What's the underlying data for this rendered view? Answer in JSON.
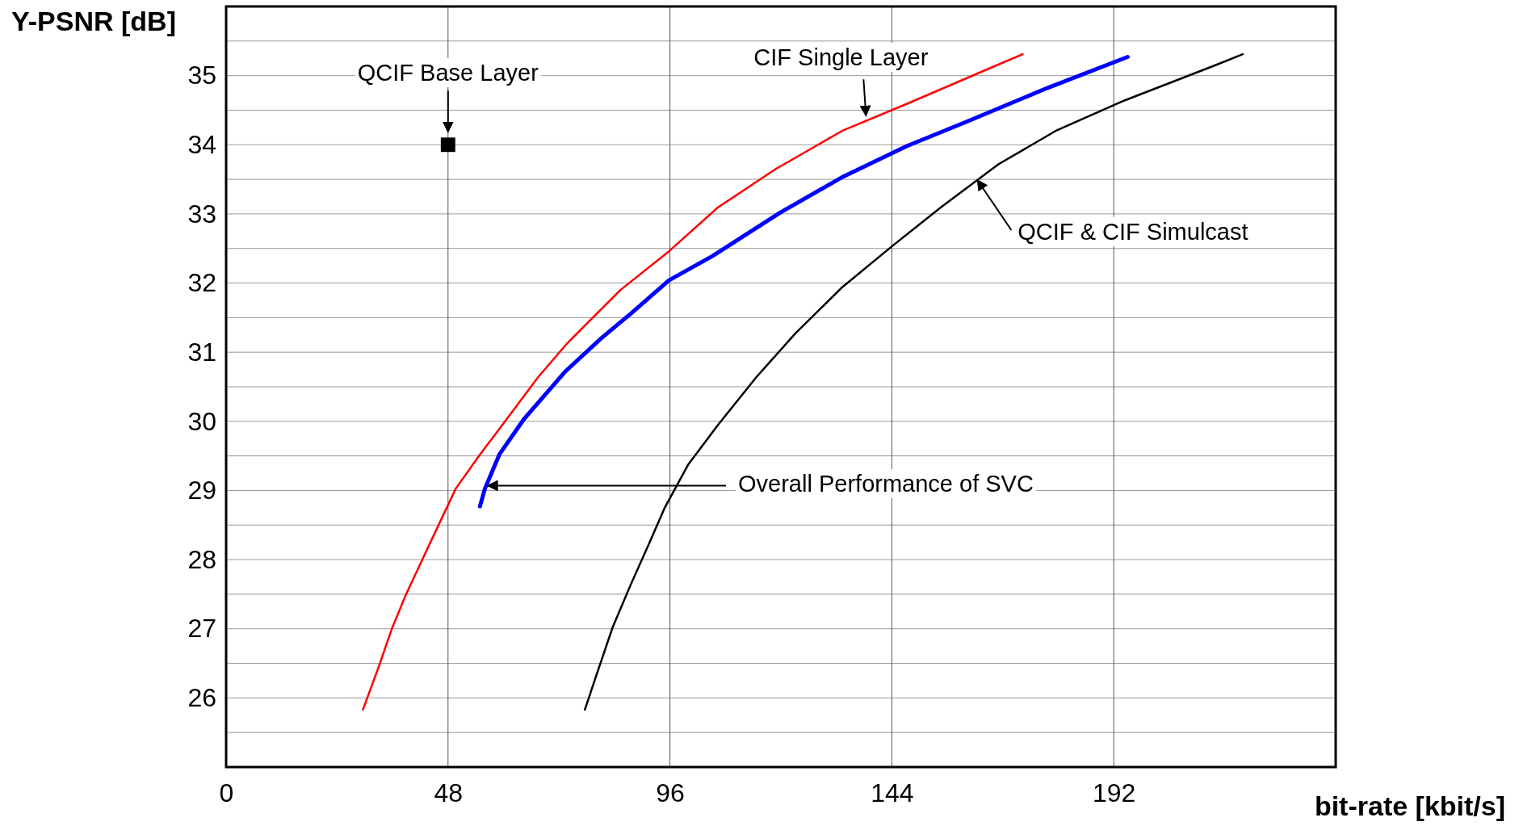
{
  "chart_data": {
    "type": "line",
    "xlabel": "bit-rate [kbit/s]",
    "ylabel": "Y-PSNR [dB]",
    "xlim": [
      0,
      240
    ],
    "ylim": [
      25,
      36
    ],
    "xticks": [
      0,
      48,
      96,
      144,
      192
    ],
    "yticks": [
      {
        "value": 25.5,
        "label": null
      },
      26,
      {
        "value": 26.5,
        "label": null
      },
      27,
      {
        "value": 27.5,
        "label": null
      },
      28,
      {
        "value": 28.5,
        "label": null
      },
      29,
      {
        "value": 29.5,
        "label": null
      },
      30,
      {
        "value": 30.5,
        "label": null
      },
      31,
      {
        "value": 31.5,
        "label": null
      },
      32,
      {
        "value": 32.5,
        "label": null
      },
      33,
      {
        "value": 33.5,
        "label": null
      },
      34,
      {
        "value": 34.5,
        "label": null
      },
      35,
      {
        "value": 35.5,
        "label": null
      }
    ],
    "grid": true,
    "marker": "none",
    "line_style": "solid",
    "series": [
      {
        "color": "#ff0000",
        "x": [
          29.6,
          32.9,
          35.8,
          38.8,
          44.4,
          49.7,
          54.9,
          59.1,
          67.5,
          73.8,
          79.0,
          85.3,
          95.8,
          106.3,
          118.9,
          133.5,
          147.2,
          166.0,
          172.3
        ],
        "values": [
          25.83,
          26.43,
          26.99,
          27.48,
          28.28,
          29.03,
          29.52,
          29.89,
          30.64,
          31.13,
          31.48,
          31.9,
          32.46,
          33.09,
          33.65,
          34.21,
          34.59,
          35.13,
          35.31
        ]
      },
      {
        "color": "#0000ff",
        "x": [
          54.9,
          56.0,
          59.1,
          64.4,
          73.2,
          81.1,
          87.4,
          95.8,
          105.2,
          119.9,
          133.5,
          147.2,
          160.8,
          177.6,
          195.0
        ],
        "values": [
          28.77,
          29.03,
          29.52,
          30.03,
          30.71,
          31.2,
          31.55,
          32.04,
          32.39,
          33.02,
          33.54,
          33.98,
          34.35,
          34.82,
          35.27
        ]
      },
      {
        "color": "#000000",
        "x": [
          77.6,
          80.1,
          83.6,
          87.4,
          91.6,
          94.8,
          100.0,
          106.3,
          114.7,
          123.1,
          133.1,
          144.0,
          154.5,
          167.1,
          179.7,
          194.3,
          213.2,
          219.9
        ],
        "values": [
          25.83,
          26.33,
          27.02,
          27.62,
          28.25,
          28.74,
          29.38,
          29.94,
          30.64,
          31.27,
          31.93,
          32.53,
          33.09,
          33.72,
          34.21,
          34.64,
          35.13,
          35.31
        ]
      },
      {
        "type": "scatter",
        "marker": "square",
        "color": "#000000",
        "x": [
          48
        ],
        "values": [
          34
        ]
      }
    ],
    "annotations": [
      {
        "text": "QCIF Base Layer",
        "x": 48,
        "y": 34
      },
      {
        "text": "CIF Single Layer",
        "x": 138.4,
        "y": 34.42
      },
      {
        "text": "QCIF & CIF Simulcast",
        "x": 162.5,
        "y": 33.49
      },
      {
        "text": "Overall Performance of SVC",
        "x": 56.6,
        "y": 29.07
      }
    ]
  }
}
